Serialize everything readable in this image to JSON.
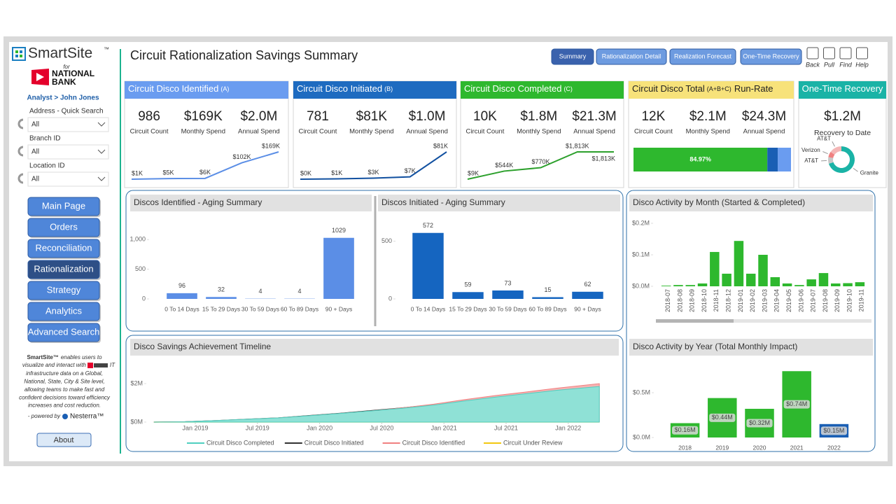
{
  "sidebar": {
    "logo": "SmartSite",
    "logo_mark": "™",
    "for": "for",
    "bank": [
      "NATIONAL",
      "BANK"
    ],
    "analyst": "Analyst > John Jones",
    "filters": [
      {
        "label": "Address - Quick Search",
        "value": "All"
      },
      {
        "label": "Branch ID",
        "value": "All"
      },
      {
        "label": "Location ID",
        "value": "All"
      }
    ],
    "nav": [
      "Main Page",
      "Orders",
      "Reconciliation",
      "Rationalization",
      "Strategy",
      "Analytics",
      "Advanced Search"
    ],
    "nav_selected": 3,
    "description": {
      "brand": "SmartSite™",
      "lead": "enables users to",
      "line2": "visualize and interact with",
      "line2_end": "IT",
      "lines": [
        "infrastructure data on a Global,",
        "National, State, City & Site level,",
        "allowing teams to make fast and",
        "confident decisions toward efficiency",
        "increases and cost reduction."
      ]
    },
    "powered_by": "- powered by",
    "vendor": "Nesterra™",
    "about": "About"
  },
  "header": {
    "title": "Circuit Rationalization Savings Summary",
    "tabs": [
      "Summary",
      "Rationalization Detail",
      "Realization Forecast",
      "One-Time Recovery"
    ],
    "tab_selected": 0,
    "tools": [
      "Back",
      "Pull",
      "Find",
      "Help"
    ]
  },
  "kpis": [
    {
      "title": "Circuit Disco Identified",
      "suffix": "(A)",
      "color": "#6a9cf0",
      "text_color": "#ffffff",
      "metrics": [
        {
          "value": "986",
          "label": "Circuit Count"
        },
        {
          "value": "$169K",
          "label": "Monthly Spend"
        },
        {
          "value": "$2.0M",
          "label": "Annual Spend"
        }
      ],
      "sparkline": {
        "values": [
          1,
          5,
          6,
          102,
          169
        ],
        "value_labels": [
          "$1K",
          "$5K",
          "$6K",
          "$102K",
          "$169K"
        ],
        "color": "#5b8ee6"
      }
    },
    {
      "title": "Circuit Disco Initiated",
      "suffix": "(B)",
      "color": "#1e6bc0",
      "text_color": "#ffffff",
      "metrics": [
        {
          "value": "781",
          "label": "Circuit Count"
        },
        {
          "value": "$81K",
          "label": "Monthly Spend"
        },
        {
          "value": "$1.0M",
          "label": "Annual Spend"
        }
      ],
      "sparkline": {
        "values": [
          0,
          1,
          3,
          7,
          81
        ],
        "value_labels": [
          "$0K",
          "$1K",
          "$3K",
          "$7K",
          "$81K"
        ],
        "color": "#1150a0"
      }
    },
    {
      "title": "Circuit Disco Completed",
      "suffix": "(C)",
      "color": "#2eb82e",
      "text_color": "#ffffff",
      "metrics": [
        {
          "value": "10K",
          "label": "Circuit Count"
        },
        {
          "value": "$1.8M",
          "label": "Monthly Spend"
        },
        {
          "value": "$21.3M",
          "label": "Annual Spend"
        }
      ],
      "sparkline": {
        "values": [
          9,
          544,
          770,
          1813,
          1813
        ],
        "value_labels": [
          "$9K",
          "$544K",
          "$770K",
          "$1,813K",
          "$1,813K"
        ],
        "color": "#2ca02c"
      }
    },
    {
      "title": "Circuit Disco Total",
      "suffix": "(A+B+C)",
      "title_end": "Run-Rate",
      "color": "#f7e27a",
      "text_color": "#222222",
      "metrics": [
        {
          "value": "12K",
          "label": "Circuit Count"
        },
        {
          "value": "$2.1M",
          "label": "Monthly Spend"
        },
        {
          "value": "$24.3M",
          "label": "Annual Spend"
        }
      ],
      "bar": {
        "values": [
          84.97,
          6.7,
          8.33
        ],
        "value_labels": [
          "84.97%",
          null,
          null
        ],
        "colors": [
          "#2eb82e",
          "#1a5fb4",
          "#6a9cf0"
        ]
      }
    },
    {
      "title": "One-Time Recovery",
      "color": "#1ab3a6",
      "text_color": "#ffffff",
      "metrics": [
        {
          "value": "$1.2M",
          "label": "Recovery to Date"
        }
      ],
      "donut": {
        "categories": [
          "Granite",
          "AT&T",
          "Verizon",
          "AT&T"
        ],
        "values": [
          70,
          8,
          7,
          15
        ],
        "colors": [
          "#1ab3a6",
          "#c8c8c8",
          "#f08080",
          "#f4b6b6"
        ]
      }
    }
  ],
  "chart_data": [
    {
      "type": "bar",
      "title": "Discos Identified - Aging Summary",
      "categories": [
        "0 To 14 Days",
        "15 To 29 Days",
        "30 To 59 Days",
        "60 To 89 Days",
        "90 + Days"
      ],
      "values": [
        96,
        32,
        4,
        4,
        1029
      ],
      "color": "#5b8ee6",
      "data_labels": true,
      "ylim": [
        0,
        1380
      ],
      "yticks": [
        0,
        500,
        {
          "value": 1000,
          "label": "1,000"
        }
      ]
    },
    {
      "type": "bar",
      "title": "Discos Initiated - Aging Summary",
      "categories": [
        "0 To 14 Days",
        "15 To 29 Days",
        "30 To 59 Days",
        "60 To 89 Days",
        "90 + Days"
      ],
      "values": [
        572,
        59,
        73,
        15,
        62
      ],
      "color": "#1565c0",
      "data_labels": true,
      "ylim": [
        0,
        710
      ],
      "yticks": [
        0,
        500
      ]
    },
    {
      "type": "bar",
      "title": "Disco Activity by Month (Started & Completed)",
      "categories": [
        "2018-07",
        "2018-08",
        "2018-09",
        "2018-10",
        "2018-11",
        "2018-12",
        "2019-01",
        "2019-02",
        "2019-03",
        "2019-04",
        "2019-05",
        "2019-06",
        "2019-07",
        "2019-08",
        "2019-09",
        "2019-10",
        "2019-11"
      ],
      "values": [
        0.002,
        0.004,
        0.004,
        0.009,
        0.109,
        0.04,
        0.144,
        0.04,
        0.1,
        0.029,
        0.009,
        0.004,
        0.022,
        0.042,
        0.009,
        0.01,
        0.013
      ],
      "color": "#2eb82e",
      "rotate_labels": true,
      "ylim": [
        0,
        0.22
      ],
      "yticks": [
        {
          "value": 0,
          "label": "$0.0M"
        },
        {
          "value": 0.1,
          "label": "$0.1M"
        },
        {
          "value": 0.2,
          "label": "$0.2M"
        }
      ]
    },
    {
      "type": "bar",
      "title": "Disco Activity by Year (Total Monthly Impact)",
      "categories": [
        "2018",
        "2019",
        "2020",
        "2021",
        "2022"
      ],
      "values": [
        0.16,
        0.44,
        0.32,
        0.74,
        0.15
      ],
      "value_labels": [
        "$0.16M",
        "$0.44M",
        "$0.32M",
        "$0.74M",
        "$0.15M"
      ],
      "colors": [
        "#2eb82e",
        "#2eb82e",
        "#2eb82e",
        "#2eb82e",
        "#1a5fb4"
      ],
      "ylim": [
        0,
        0.82
      ],
      "yticks": [
        {
          "value": 0,
          "label": "$0.0M"
        },
        {
          "value": 0.5,
          "label": "$0.5M"
        }
      ]
    },
    {
      "type": "area",
      "title": "Disco Savings Achievement Timeline",
      "x": [
        "2018-09",
        "2018-12",
        "2019-03",
        "2019-06",
        "2019-09",
        "2019-12",
        "2020-03",
        "2020-06",
        "2020-09",
        "2020-12",
        "2021-03",
        "2021-06",
        "2021-09",
        "2021-12",
        "2022-04"
      ],
      "series": [
        {
          "name": "Circuit Disco Completed",
          "color": "#4fcfc0",
          "fill": "#8fe1d6",
          "values": [
            0,
            0.02,
            0.08,
            0.15,
            0.22,
            0.33,
            0.45,
            0.58,
            0.72,
            0.88,
            1.1,
            1.3,
            1.48,
            1.66,
            1.85
          ]
        },
        {
          "name": "Circuit Disco Initiated",
          "color": "#333333",
          "values": [
            0,
            0.02,
            0.08,
            0.15,
            0.22,
            0.34,
            0.46,
            0.6,
            0.74,
            0.9,
            1.12,
            1.32,
            1.5,
            1.68,
            1.87
          ]
        },
        {
          "name": "Circuit Disco Identified",
          "color": "#f08080",
          "fill": "#f6b3b3",
          "values": [
            0,
            0.02,
            0.08,
            0.15,
            0.22,
            0.33,
            0.45,
            0.58,
            0.74,
            0.93,
            1.17,
            1.38,
            1.57,
            1.77,
            2.0
          ]
        },
        {
          "name": "Circuit Under Review",
          "color": "#f2c811",
          "values": [
            0,
            0,
            0,
            0,
            0,
            0,
            0,
            0,
            0,
            0,
            0,
            0,
            0,
            0,
            0
          ]
        }
      ],
      "xlim": [
        "2018-08",
        "2022-05"
      ],
      "xticks": [
        {
          "value": "2019-01",
          "label": "Jan 2019"
        },
        {
          "value": "2019-07",
          "label": "Jul 2019"
        },
        {
          "value": "2020-01",
          "label": "Jan 2020"
        },
        {
          "value": "2020-07",
          "label": "Jul 2020"
        },
        {
          "value": "2021-01",
          "label": "Jan 2021"
        },
        {
          "value": "2021-07",
          "label": "Jul 2021"
        },
        {
          "value": "2022-01",
          "label": "Jan 2022"
        }
      ],
      "ylim": [
        0,
        2.2
      ],
      "yticks": [
        {
          "value": 0,
          "label": "$0M"
        },
        {
          "value": 2,
          "label": "$2M"
        }
      ]
    }
  ]
}
